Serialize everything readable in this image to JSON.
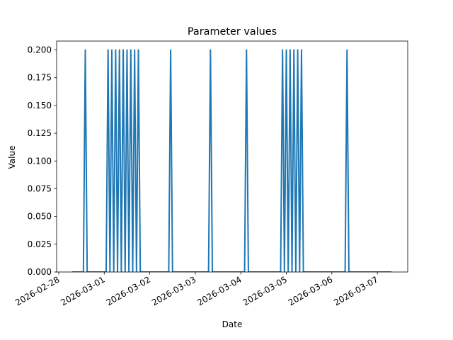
{
  "chart_data": {
    "type": "line",
    "title": "Parameter values",
    "x_label": "Date",
    "y_label": "Value",
    "x": [
      "2026-02-28 07:00",
      "2026-02-28 13:00",
      "2026-02-28 14:00",
      "2026-02-28 15:00",
      "2026-03-01 01:00",
      "2026-03-01 02:00",
      "2026-03-01 03:00",
      "2026-03-01 04:00",
      "2026-03-01 05:00",
      "2026-03-01 06:00",
      "2026-03-01 07:00",
      "2026-03-01 08:00",
      "2026-03-01 09:00",
      "2026-03-01 10:00",
      "2026-03-01 11:00",
      "2026-03-01 12:00",
      "2026-03-01 13:00",
      "2026-03-01 14:00",
      "2026-03-01 15:00",
      "2026-03-01 16:00",
      "2026-03-01 17:00",
      "2026-03-01 18:00",
      "2026-03-01 19:00",
      "2026-03-02 10:00",
      "2026-03-02 11:00",
      "2026-03-02 12:00",
      "2026-03-03 07:00",
      "2026-03-03 08:00",
      "2026-03-03 09:00",
      "2026-03-04 02:00",
      "2026-03-04 03:00",
      "2026-03-04 04:00",
      "2026-03-04 21:00",
      "2026-03-04 22:00",
      "2026-03-04 23:00",
      "2026-03-05 00:00",
      "2026-03-05 01:00",
      "2026-03-05 02:00",
      "2026-03-05 03:00",
      "2026-03-05 04:00",
      "2026-03-05 05:00",
      "2026-03-05 06:00",
      "2026-03-05 07:00",
      "2026-03-05 08:00",
      "2026-03-05 09:00",
      "2026-03-06 07:00",
      "2026-03-06 08:00",
      "2026-03-06 09:00",
      "2026-03-07 07:30"
    ],
    "values": [
      0,
      0,
      0.2,
      0,
      0,
      0.2,
      0,
      0.2,
      0,
      0.2,
      0,
      0.2,
      0,
      0.2,
      0,
      0.2,
      0,
      0.2,
      0,
      0.2,
      0,
      0.2,
      0,
      0,
      0.2,
      0,
      0,
      0.2,
      0,
      0,
      0.2,
      0,
      0,
      0.2,
      0,
      0.2,
      0,
      0.2,
      0,
      0.2,
      0,
      0.2,
      0,
      0.2,
      0,
      0,
      0.2,
      0,
      0
    ],
    "color": "#1f77b4",
    "xlim": [
      "2026-02-27 22:53",
      "2026-03-07 16:00"
    ],
    "xticks": [
      "2026-02-28",
      "2026-03-01",
      "2026-03-02",
      "2026-03-03",
      "2026-03-04",
      "2026-03-05",
      "2026-03-06",
      "2026-03-07"
    ],
    "ylim": [
      0,
      0.208
    ],
    "yticks": [
      {
        "value": 0,
        "label": "0.000"
      },
      {
        "value": 0.025,
        "label": "0.025"
      },
      {
        "value": 0.05,
        "label": "0.050"
      },
      {
        "value": 0.075,
        "label": "0.075"
      },
      {
        "value": 0.1,
        "label": "0.100"
      },
      {
        "value": 0.125,
        "label": "0.125"
      },
      {
        "value": 0.15,
        "label": "0.150"
      },
      {
        "value": 0.175,
        "label": "0.175"
      },
      {
        "value": 0.2,
        "label": "0.200"
      }
    ]
  }
}
